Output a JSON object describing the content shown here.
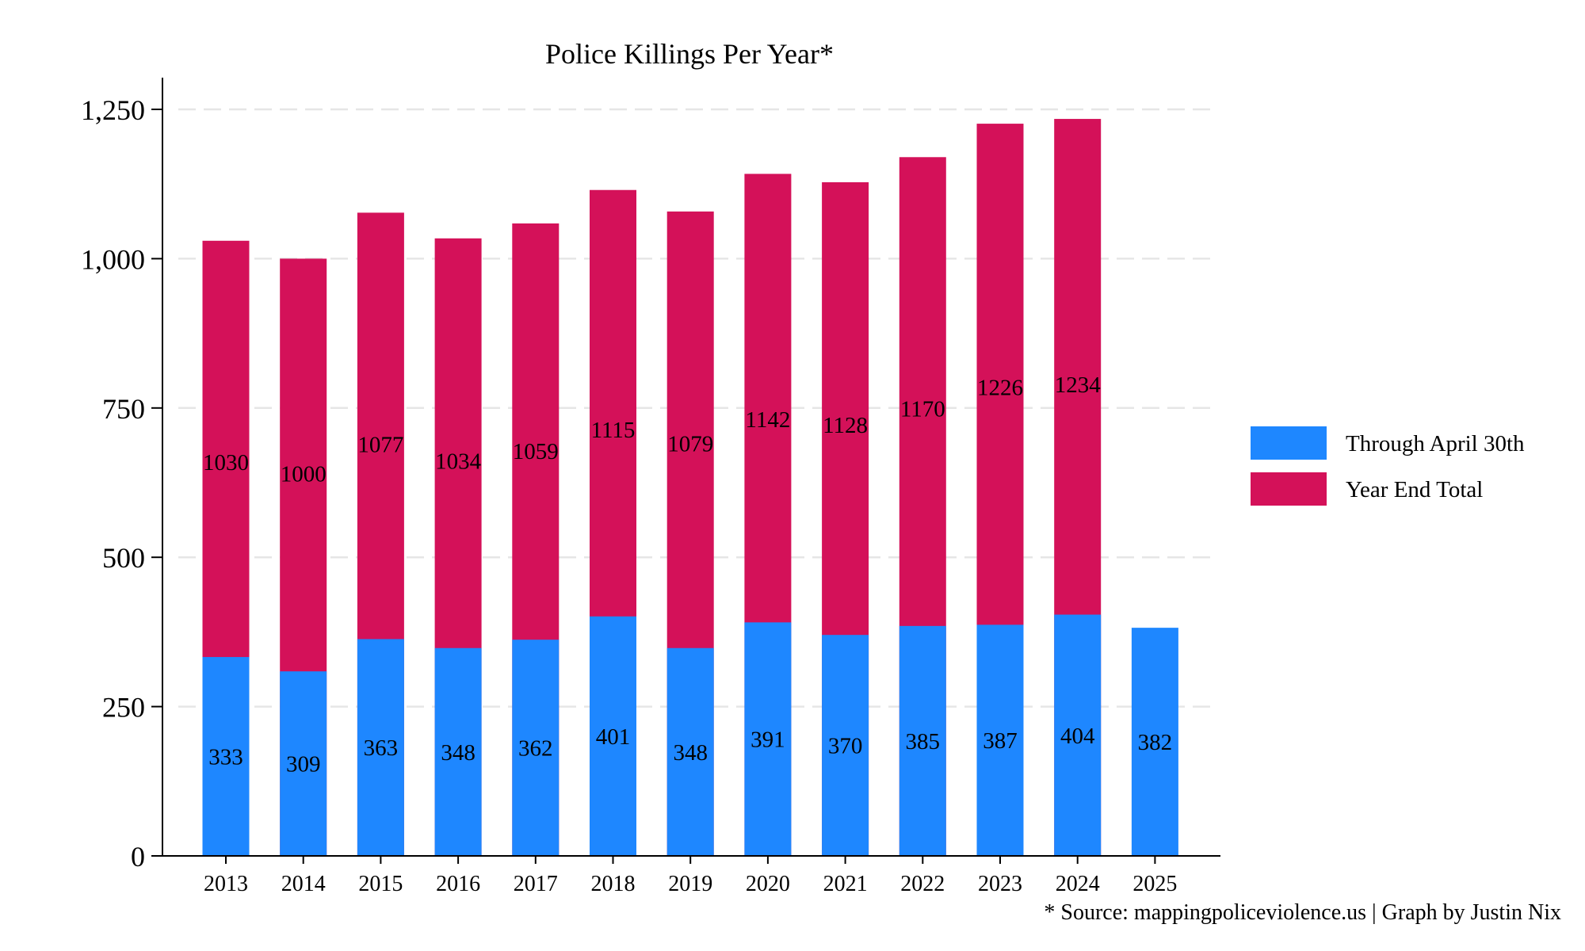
{
  "chart_data": {
    "type": "bar",
    "stacked": false,
    "overlay": true,
    "title": "Police Killings Per Year*",
    "xlabel": "",
    "ylabel": "",
    "categories": [
      "2013",
      "2014",
      "2015",
      "2016",
      "2017",
      "2018",
      "2019",
      "2020",
      "2021",
      "2022",
      "2023",
      "2024",
      "2025"
    ],
    "series": [
      {
        "name": "Through April 30th",
        "color": "#1e87ff",
        "values": [
          333,
          309,
          363,
          348,
          362,
          401,
          348,
          391,
          370,
          385,
          387,
          404,
          382
        ]
      },
      {
        "name": "Year End Total",
        "color": "#d41159",
        "values": [
          1030,
          1000,
          1077,
          1034,
          1059,
          1115,
          1079,
          1142,
          1128,
          1170,
          1226,
          1234,
          null
        ]
      }
    ],
    "ylim": [
      0,
      1250
    ],
    "yticks": [
      0,
      250,
      500,
      750,
      1000,
      1250
    ],
    "ytick_labels": [
      "0",
      "250",
      "500",
      "750",
      "1,000",
      "1,250"
    ],
    "grid": true,
    "legend_position": "right",
    "note": "* Source: mappingpoliceviolence.us | Graph by Justin Nix"
  }
}
